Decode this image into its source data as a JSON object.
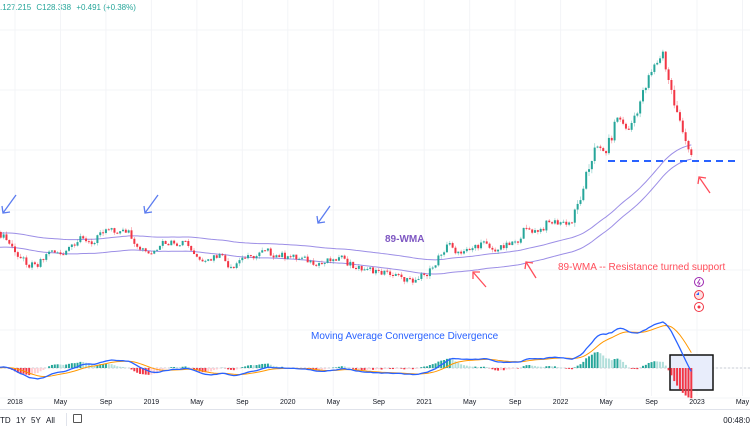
{
  "header": {
    "low_partial": ".127.215",
    "close": "C128.338",
    "change": "+0.491 (+0.38%)"
  },
  "toolbar": {
    "ranges": [
      "TD",
      "1Y",
      "5Y",
      "All"
    ],
    "time": "00:48:0"
  },
  "colors": {
    "up": "#26a69a",
    "down": "#f23645",
    "wma": "#9c8ee6",
    "macd": "#2962ff",
    "signal": "#ff9800",
    "annotation_red": "#ff4d5a",
    "annotation_purple": "#7e57c2",
    "support_line": "#2962ff"
  },
  "chart_data": {
    "type": "candlestick",
    "interval": "weekly (derived from monthly closes)",
    "months": [
      "2017-11",
      "2017-12",
      "2018-01",
      "2018-02",
      "2018-03",
      "2018-04",
      "2018-05",
      "2018-06",
      "2018-07",
      "2018-08",
      "2018-09",
      "2018-10",
      "2018-11",
      "2018-12",
      "2019-01",
      "2019-02",
      "2019-03",
      "2019-04",
      "2019-05",
      "2019-06",
      "2019-07",
      "2019-08",
      "2019-09",
      "2019-10",
      "2019-11",
      "2019-12",
      "2020-01",
      "2020-02",
      "2020-03",
      "2020-04",
      "2020-05",
      "2020-06",
      "2020-07",
      "2020-08",
      "2020-09",
      "2020-10",
      "2020-11",
      "2020-12",
      "2021-01",
      "2021-02",
      "2021-03",
      "2021-04",
      "2021-05",
      "2021-06",
      "2021-07",
      "2021-08",
      "2021-09",
      "2021-10",
      "2021-11",
      "2021-12",
      "2022-01",
      "2022-02",
      "2022-03",
      "2022-04",
      "2022-05",
      "2022-06",
      "2022-07",
      "2022-08",
      "2022-09",
      "2022-10",
      "2022-11",
      "2022-12",
      "2023-01"
    ],
    "monthly_close": [
      112.5,
      112.7,
      109.2,
      106.7,
      106.3,
      109.3,
      108.8,
      110.7,
      111.9,
      111.0,
      113.7,
      112.9,
      113.5,
      109.7,
      108.9,
      111.4,
      110.9,
      111.4,
      108.3,
      107.8,
      108.8,
      106.3,
      108.1,
      108.0,
      109.5,
      108.6,
      108.4,
      107.9,
      107.5,
      106.9,
      107.8,
      107.9,
      105.9,
      105.9,
      105.5,
      104.7,
      104.3,
      103.2,
      104.7,
      106.6,
      110.7,
      109.3,
      109.6,
      111.1,
      109.7,
      110.0,
      111.3,
      113.9,
      113.2,
      115.1,
      115.1,
      115.0,
      121.7,
      129.8,
      128.7,
      135.7,
      133.3,
      138.9,
      144.7,
      148.7,
      138.1,
      131.1,
      128.338
    ],
    "x_ticks": [
      "2018",
      "May",
      "Sep",
      "2019",
      "May",
      "Sep",
      "2020",
      "May",
      "Sep",
      "2021",
      "May",
      "Sep",
      "2022",
      "May",
      "Sep",
      "2023",
      "May"
    ],
    "indicators": {
      "wma_period": 89,
      "macd": [
        12,
        26,
        9
      ]
    },
    "annotations": {
      "wma_label": "89-WMA",
      "support_note": "89-WMA -- Resistance turned support",
      "macd_title": "Moving Average Convergence Divergence",
      "support_level": 131.0
    }
  }
}
